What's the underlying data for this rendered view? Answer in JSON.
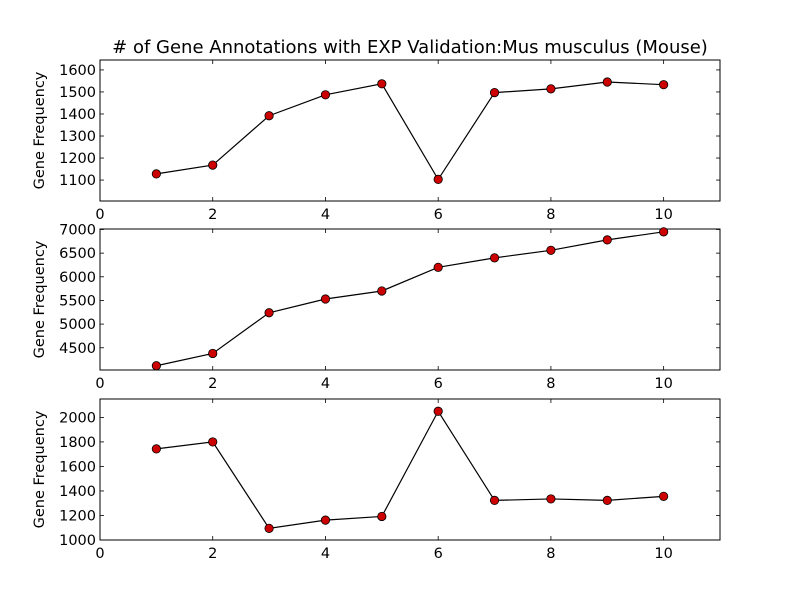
{
  "chart_data": [
    {
      "type": "line",
      "title": "# of Gene Annotations with EXP Validation:Mus musculus (Mouse)",
      "xlabel": "",
      "ylabel": "Gene Frequency",
      "xlim": [
        0,
        11
      ],
      "ylim": [
        1005,
        1645
      ],
      "xticks": [
        0,
        2,
        4,
        6,
        8,
        10
      ],
      "yticks": [
        1100,
        1200,
        1300,
        1400,
        1500,
        1600
      ],
      "grid": false,
      "marker_color": "#cc0000",
      "line_color": "#000000",
      "x": [
        1,
        2,
        3,
        4,
        5,
        6,
        7,
        8,
        9,
        10
      ],
      "series": [
        {
          "values": [
            1128,
            1168,
            1392,
            1487,
            1537,
            1103,
            1497,
            1514,
            1545,
            1533
          ]
        }
      ]
    },
    {
      "type": "line",
      "title": "",
      "xlabel": "",
      "ylabel": "Gene Frequency",
      "xlim": [
        0,
        11
      ],
      "ylim": [
        4030,
        7010
      ],
      "xticks": [
        0,
        2,
        4,
        6,
        8,
        10
      ],
      "yticks": [
        4500,
        5000,
        5500,
        6000,
        6500,
        7000
      ],
      "grid": false,
      "marker_color": "#cc0000",
      "line_color": "#000000",
      "x": [
        1,
        2,
        3,
        4,
        5,
        6,
        7,
        8,
        9,
        10
      ],
      "series": [
        {
          "values": [
            4120,
            4380,
            5240,
            5530,
            5700,
            6200,
            6400,
            6560,
            6780,
            6950
          ]
        }
      ]
    },
    {
      "type": "line",
      "title": "",
      "xlabel": "",
      "ylabel": "Gene Frequency",
      "xlim": [
        0,
        11
      ],
      "ylim": [
        1000,
        2150
      ],
      "xticks": [
        0,
        2,
        4,
        6,
        8,
        10
      ],
      "yticks": [
        1000,
        1200,
        1400,
        1600,
        1800,
        2000
      ],
      "grid": false,
      "marker_color": "#cc0000",
      "line_color": "#000000",
      "x": [
        1,
        2,
        3,
        4,
        5,
        6,
        7,
        8,
        9,
        10
      ],
      "series": [
        {
          "values": [
            1743,
            1800,
            1095,
            1162,
            1192,
            2050,
            1323,
            1335,
            1323,
            1356
          ]
        }
      ]
    }
  ]
}
